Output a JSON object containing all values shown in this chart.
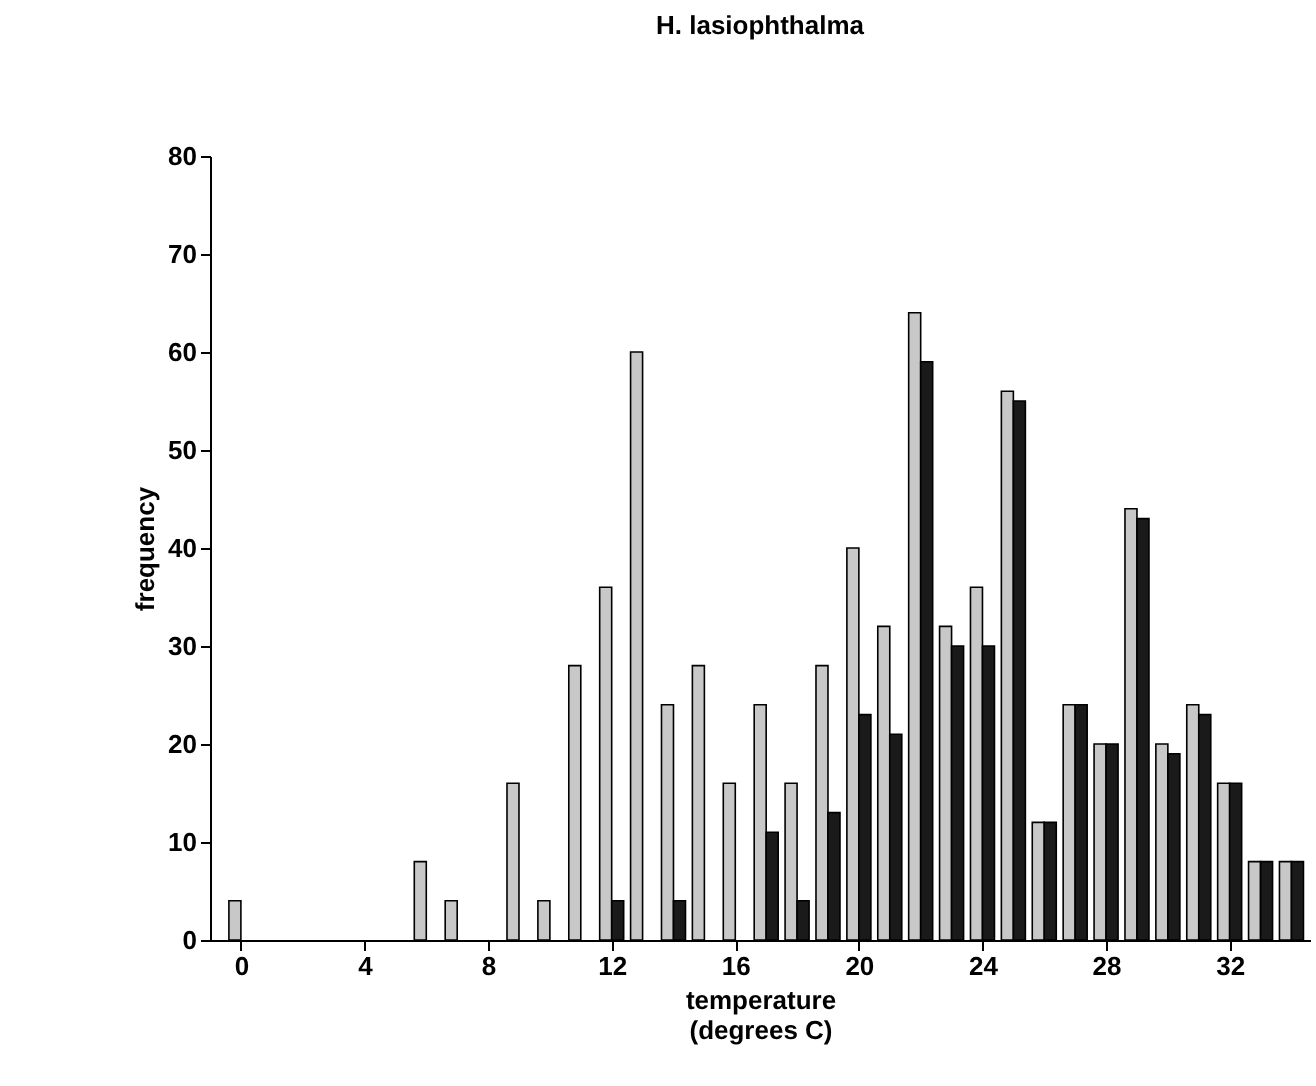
{
  "chart_data": {
    "type": "bar",
    "title": "H. lasiophthalma",
    "xlabel": "temperature\n(degrees C)",
    "ylabel": "frequency",
    "x": [
      0,
      1,
      2,
      3,
      4,
      5,
      6,
      7,
      8,
      9,
      10,
      11,
      12,
      13,
      14,
      15,
      16,
      17,
      18,
      19,
      20,
      21,
      22,
      23,
      24,
      25,
      26,
      27,
      28,
      29,
      30,
      31,
      32,
      33,
      34
    ],
    "series": [
      {
        "color": "#c8c8c8",
        "values": [
          4,
          null,
          null,
          null,
          null,
          null,
          8,
          4,
          null,
          16,
          4,
          28,
          36,
          60,
          24,
          28,
          16,
          24,
          16,
          28,
          40,
          32,
          64,
          32,
          36,
          56,
          12,
          24,
          20,
          44,
          20,
          24,
          16,
          8,
          8
        ]
      },
      {
        "color": "#1a1a1a",
        "values": [
          null,
          null,
          null,
          null,
          null,
          null,
          null,
          null,
          null,
          null,
          null,
          null,
          4,
          null,
          4,
          null,
          null,
          11,
          4,
          13,
          23,
          21,
          59,
          30,
          30,
          55,
          12,
          24,
          20,
          43,
          19,
          23,
          16,
          8,
          8
        ]
      }
    ],
    "xlim": [
      -1,
      34.6
    ],
    "xticks": [
      0,
      4,
      8,
      12,
      16,
      20,
      24,
      28,
      32
    ],
    "ylim": [
      0,
      80
    ],
    "yticks": [
      0,
      10,
      20,
      30,
      40,
      50,
      60,
      70,
      80
    ],
    "grid": false
  }
}
